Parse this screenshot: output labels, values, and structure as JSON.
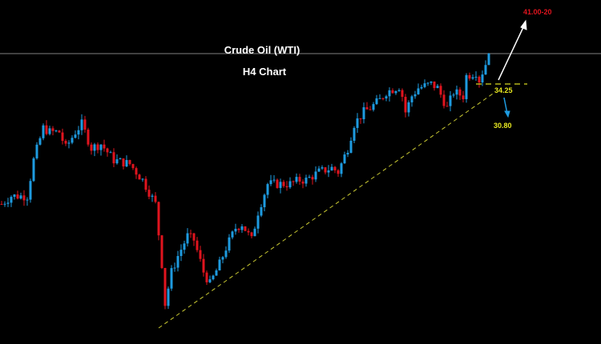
{
  "chart_data": {
    "type": "candlestick",
    "title": "Crude Oil (WTI)",
    "subtitle": "H4 Chart",
    "colors": {
      "up": "#1e9be0",
      "down": "#e0141e",
      "background": "#000000",
      "trendline": "#c8c832",
      "level": "#d8d820",
      "current_line": "#808080"
    },
    "close_path": [
      [
        0,
        26.75
      ],
      [
        3,
        27.25
      ],
      [
        8,
        27.25
      ],
      [
        10,
        29.5
      ],
      [
        13,
        31.5
      ],
      [
        15,
        31.25
      ],
      [
        18,
        31.25
      ],
      [
        20,
        30.25
      ],
      [
        23,
        31.25
      ],
      [
        25,
        31.75
      ],
      [
        28,
        30.25
      ],
      [
        31,
        30.5
      ],
      [
        35,
        29.5
      ],
      [
        40,
        29.25
      ],
      [
        44,
        28.25
      ],
      [
        48,
        26.75
      ],
      [
        50,
        23.0
      ],
      [
        51,
        20.5
      ],
      [
        53,
        22.5
      ],
      [
        55,
        23.5
      ],
      [
        58,
        24.75
      ],
      [
        60,
        24.5
      ],
      [
        63,
        22.5
      ],
      [
        65,
        21.75
      ],
      [
        68,
        23.0
      ],
      [
        70,
        24.0
      ],
      [
        73,
        25.25
      ],
      [
        75,
        25.5
      ],
      [
        78,
        24.5
      ],
      [
        80,
        26.25
      ],
      [
        83,
        28.0
      ],
      [
        86,
        28.0
      ],
      [
        90,
        28.0
      ],
      [
        93,
        28.25
      ],
      [
        95,
        28.25
      ],
      [
        99,
        28.75
      ],
      [
        103,
        29.0
      ],
      [
        105,
        28.75
      ],
      [
        108,
        30.25
      ],
      [
        110,
        31.75
      ],
      [
        113,
        32.5
      ],
      [
        115,
        32.75
      ],
      [
        118,
        33.25
      ],
      [
        120,
        33.75
      ],
      [
        124,
        34.1
      ],
      [
        125,
        33.5
      ],
      [
        126,
        32.5
      ],
      [
        128,
        33.5
      ],
      [
        130,
        34.0
      ],
      [
        134,
        34.25
      ],
      [
        136,
        34.0
      ],
      [
        139,
        32.75
      ],
      [
        141,
        33.75
      ],
      [
        144,
        33.5
      ],
      [
        145,
        34.75
      ],
      [
        148,
        35.0
      ],
      [
        149,
        34.5
      ],
      [
        151,
        35.5
      ],
      [
        152,
        36.15
      ]
    ],
    "current_price_line": 36.15,
    "trendline": {
      "from": [
        49,
        19.0
      ],
      "to": [
        154,
        33.75
      ]
    },
    "levels": [
      {
        "label": "34.25",
        "value": 34.25
      },
      {
        "label": "30.80",
        "value": 30.8
      },
      {
        "label": "41.00-20",
        "value": 41.0
      }
    ]
  }
}
